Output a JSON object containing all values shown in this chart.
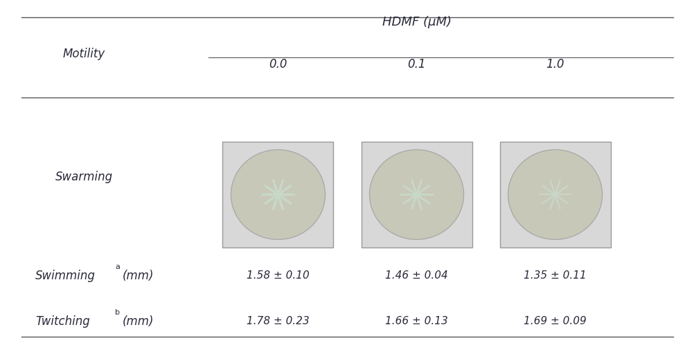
{
  "header_main": "HDMF (μM)",
  "col_header_left": "Motility",
  "col_values": [
    "0.0",
    "0.1",
    "1.0"
  ],
  "row_swarming": "Swarming",
  "row_swimming": "Swimming",
  "row_swimming_super": "a",
  "row_swimming_unit": "(mm)",
  "row_twitching": "Twitching",
  "row_twitching_super": "b",
  "row_twitching_unit": "(mm)",
  "swimming_values": [
    "1.58 ± 0.10",
    "1.46 ± 0.04",
    "1.35 ± 0.11"
  ],
  "twitching_values": [
    "1.78 ± 0.23",
    "1.66 ± 0.13",
    "1.69 ± 0.09"
  ],
  "bg_color": "#f5f5f0",
  "text_color": "#2a2a3a",
  "line_color": "#555555",
  "font_size_main": 13,
  "font_size_header": 12,
  "font_size_data": 11
}
